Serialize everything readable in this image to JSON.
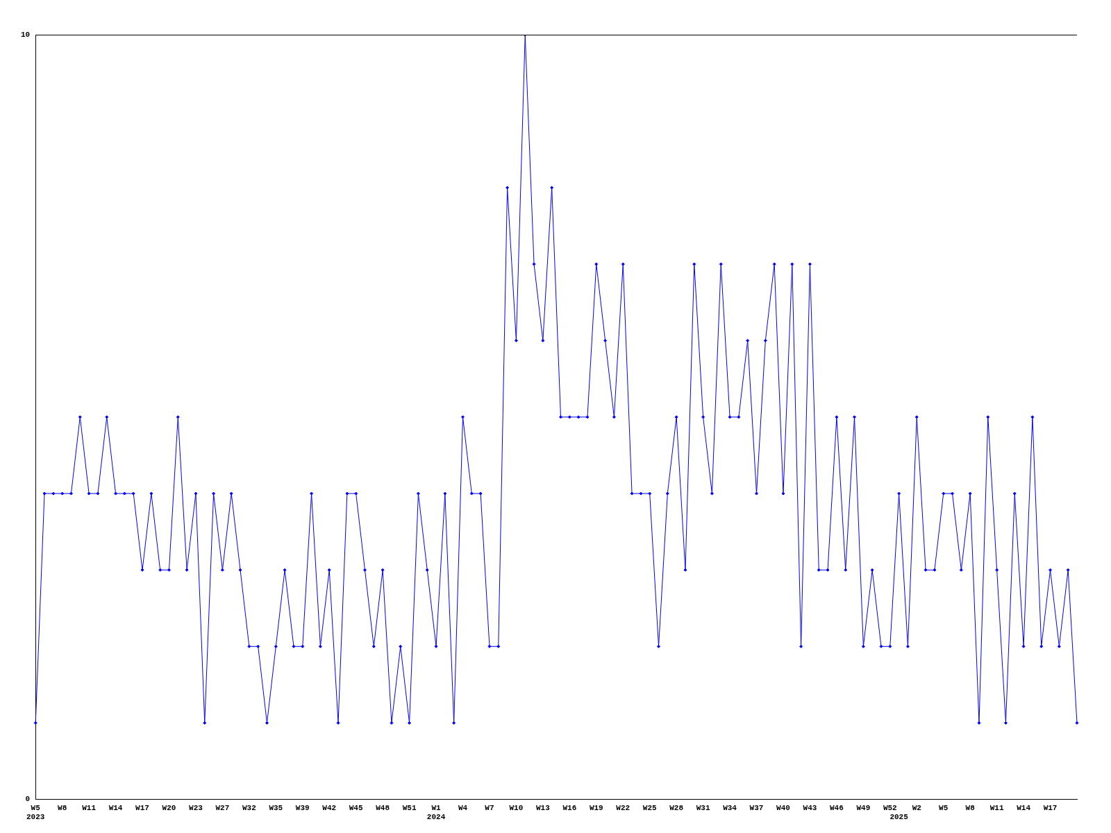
{
  "chart_data": {
    "type": "line",
    "categories": [
      "W5\n2023",
      null,
      null,
      "W8",
      null,
      null,
      "W11",
      null,
      null,
      "W14",
      null,
      null,
      "W17",
      null,
      null,
      "W20",
      null,
      null,
      "W23",
      null,
      null,
      "W27",
      null,
      null,
      "W32",
      null,
      null,
      "W35",
      null,
      null,
      "W39",
      null,
      null,
      "W42",
      null,
      null,
      "W45",
      null,
      null,
      "W48",
      null,
      null,
      "W51",
      null,
      null,
      "W1\n2024",
      null,
      null,
      "W4",
      null,
      null,
      "W7",
      null,
      null,
      "W10",
      null,
      null,
      "W13",
      null,
      null,
      "W16",
      null,
      null,
      "W19",
      null,
      null,
      "W22",
      null,
      null,
      "W25",
      null,
      null,
      "W28",
      null,
      null,
      "W31",
      null,
      null,
      "W34",
      null,
      null,
      "W37",
      null,
      null,
      "W40",
      null,
      null,
      "W43",
      null,
      null,
      "W46",
      null,
      null,
      "W49",
      null,
      null,
      "W52",
      "\n2025",
      null,
      "W2",
      null,
      null,
      "W5",
      null,
      null,
      "W8",
      null,
      null,
      "W11",
      null,
      null,
      "W14",
      null,
      null,
      "W17",
      null,
      null,
      null
    ],
    "values": [
      1,
      4,
      4,
      4,
      4,
      5,
      4,
      4,
      5,
      4,
      4,
      4,
      3,
      4,
      3,
      3,
      5,
      3,
      4,
      1,
      4,
      3,
      4,
      3,
      2,
      2,
      1,
      2,
      3,
      2,
      2,
      4,
      2,
      3,
      1,
      4,
      4,
      3,
      2,
      3,
      1,
      2,
      1,
      4,
      3,
      2,
      4,
      1,
      5,
      4,
      4,
      2,
      2,
      8,
      6,
      10,
      7,
      6,
      8,
      5,
      5,
      5,
      5,
      7,
      6,
      5,
      7,
      4,
      4,
      4,
      2,
      4,
      5,
      3,
      7,
      5,
      4,
      7,
      5,
      5,
      6,
      4,
      6,
      7,
      4,
      7,
      2,
      7,
      3,
      3,
      5,
      3,
      5,
      2,
      3,
      2,
      2,
      4,
      2,
      5,
      3,
      3,
      4,
      4,
      3,
      4,
      1,
      5,
      3,
      1,
      4,
      2,
      5,
      2,
      3,
      2,
      3,
      1
    ],
    "color": "#0000ff",
    "ylim": [
      0,
      10
    ],
    "yticks": [
      0,
      10
    ],
    "marker": "diamond"
  }
}
